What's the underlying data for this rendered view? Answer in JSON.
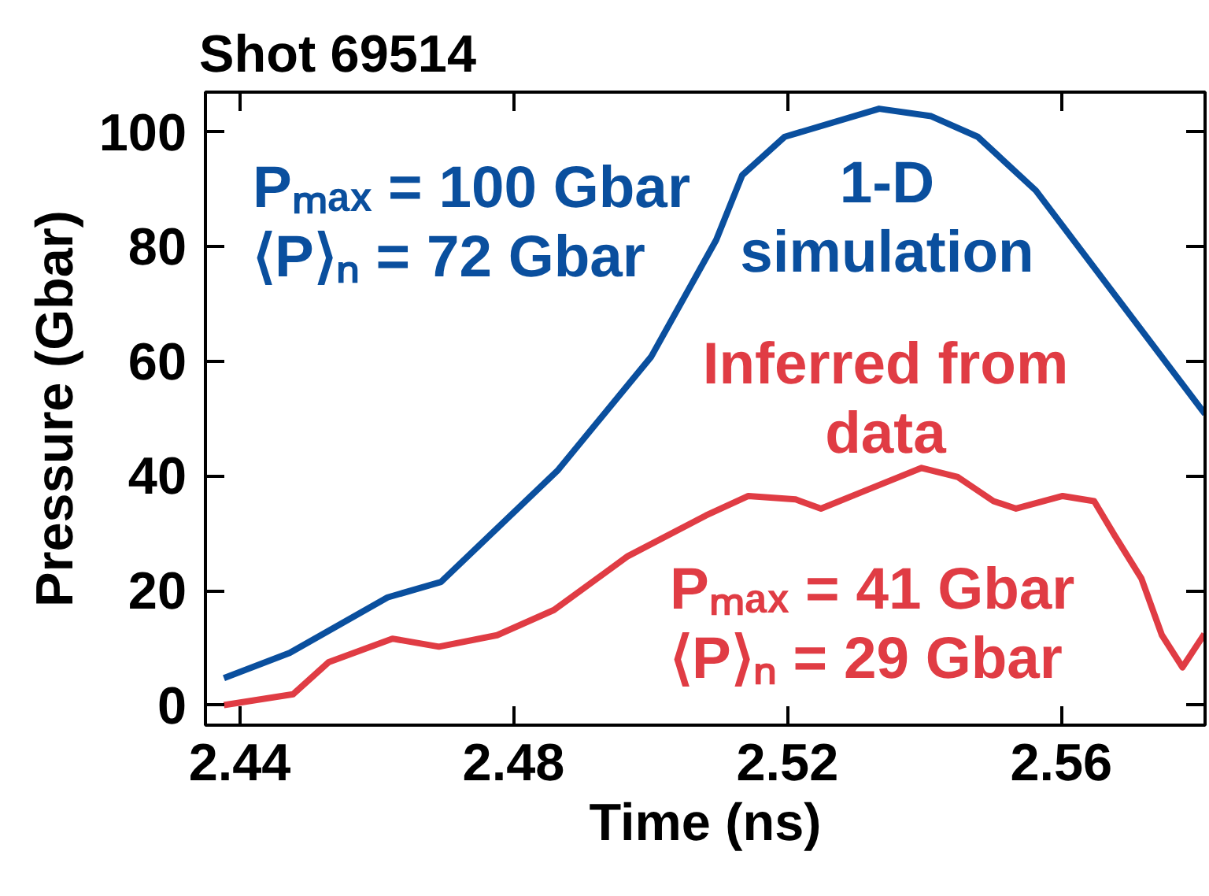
{
  "chart_data": {
    "type": "line",
    "title": "Shot 69514",
    "xlabel": "Time (ns)",
    "ylabel": "Pressure (Gbar)",
    "xlim": [
      2.435,
      2.581
    ],
    "ylim": [
      -3.5,
      107
    ],
    "xticks": [
      2.44,
      2.48,
      2.52,
      2.56
    ],
    "yticks": [
      0,
      20,
      40,
      60,
      80,
      100
    ],
    "grid": false,
    "line_style": "solid",
    "marker": "none",
    "series": [
      {
        "name": "1-D\nsimulation",
        "color": "#0a4f9e",
        "x": [
          2.4377,
          2.4473,
          2.4616,
          2.4694,
          2.4864,
          2.5001,
          2.5096,
          2.5134,
          2.5196,
          2.5334,
          2.541,
          2.5478,
          2.5563,
          2.581
        ],
        "values": [
          4.7,
          9.1,
          18.8,
          21.5,
          40.9,
          60.8,
          81.2,
          92.5,
          99.2,
          104.1,
          102.8,
          99.2,
          89.8,
          50.8
        ]
      },
      {
        "name": "Inferred from\ndata",
        "color": "#e03c44",
        "x": [
          2.4377,
          2.4478,
          2.453,
          2.4623,
          2.4691,
          2.4776,
          2.4859,
          2.4967,
          2.5081,
          2.5143,
          2.5212,
          2.5249,
          2.5311,
          2.5396,
          2.5449,
          2.5501,
          2.5534,
          2.5602,
          2.5648,
          2.5678,
          2.5717,
          2.5747,
          2.5777,
          2.5809
        ],
        "values": [
          0,
          1.9,
          7.5,
          11.6,
          10.2,
          12.2,
          16.6,
          26,
          33.1,
          36.5,
          35.9,
          34.3,
          37.3,
          41.4,
          39.8,
          35.6,
          34.3,
          36.5,
          35.6,
          29.6,
          22.1,
          12.2,
          6.6,
          12.4
        ]
      }
    ],
    "annotations": [
      "Pₘₐₓ = 100 Gbar\n⟨P⟩ₙ = 72 Gbar",
      "Pₘₐₓ = 41 Gbar\n⟨P⟩ₙ = 29 Gbar"
    ]
  }
}
